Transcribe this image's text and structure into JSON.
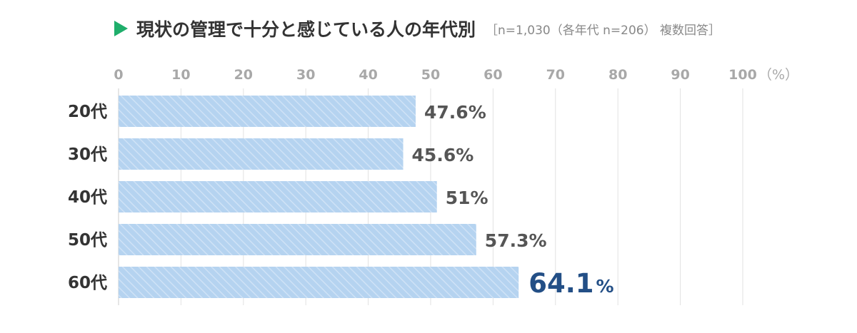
{
  "header": {
    "title": "現状の管理で十分と感じている人の年代別",
    "note": "［n=1,030（各年代 n=206） 複数回答］"
  },
  "colors": {
    "marker": "#1fae6b",
    "bar_fill": "#b5d3f0",
    "bar_stripe": "#cfe2f6",
    "highlight_text": "#234f86",
    "tick_text": "#a8a8a8",
    "grid": "#e2e2e2"
  },
  "chart_data": {
    "type": "bar",
    "orientation": "horizontal",
    "title": "現状の管理で十分と感じている人の年代別",
    "subtitle": "［n=1,030（各年代 n=206） 複数回答］",
    "categories": [
      "20代",
      "30代",
      "40代",
      "50代",
      "60代"
    ],
    "values": [
      47.6,
      45.6,
      51,
      57.3,
      64.1
    ],
    "value_labels": [
      "47.6%",
      "45.6%",
      "51%",
      "57.3%",
      "64.1"
    ],
    "highlight_index": 4,
    "highlight_suffix": "%",
    "xlim": [
      0,
      100
    ],
    "xticks": [
      0,
      10,
      20,
      30,
      40,
      50,
      60,
      70,
      80,
      90,
      100
    ],
    "x_unit": "（%）",
    "grid": true
  }
}
